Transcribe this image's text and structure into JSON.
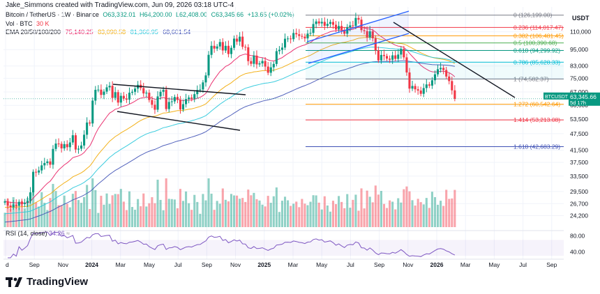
{
  "header": {
    "caption": "Jake_Simmons created with TradingView.com, Jun 09, 2026 03:18 UTC-4",
    "symbol": "Bitcoin / TetherUS · 1W · Binance",
    "open": "O63,332.01",
    "high": "H64,200.00",
    "low": "L62,408.00",
    "close": "C63,345.66",
    "change": "+13.65 (+0.02%)",
    "volume_label": "Vol · BTC",
    "volume_value": "30 K",
    "ema_label": "EMA 20/50/100/200",
    "ema_values": [
      "75,140.25",
      "83,090.58",
      "81,366.95",
      "68,601.54"
    ]
  },
  "colors": {
    "up": "#089981",
    "down": "#f23645",
    "ema20": "#e91e63",
    "ema50": "#f2a900",
    "ema100": "#26c6da",
    "ema200": "#3f51b5",
    "rsi": "#7e57c2"
  },
  "currency": "USDT",
  "price_tag": {
    "symbol": "BTCUSDT",
    "price": "63,345.66",
    "countdown": "5d 17h"
  },
  "rsi": {
    "label": "RSI (14, close)",
    "value": "34.26",
    "extra": "≈"
  },
  "branding": {
    "logo_text": "TradingView",
    "logo_icon": "tradingview-logo-icon"
  },
  "chart_data": {
    "type": "candlestick",
    "title": "Bitcoin / TetherUS · 1W · Binance",
    "ylabel": "USDT",
    "y_scale": "log",
    "ylim": [
      21500,
      135000
    ],
    "y_ticks": [
      110000,
      95000,
      83000,
      75000,
      67000,
      60000,
      53500,
      47500,
      41500,
      37500,
      33500,
      29500,
      26700,
      24200
    ],
    "y_tick_labels": [
      "110,000",
      "95,000",
      "83,000",
      "75,000",
      "67,000",
      "60,000",
      "53,500",
      "47,500",
      "41,500",
      "37,500",
      "33,500",
      "29,500",
      "26,700",
      "24,200"
    ],
    "x_tick_labels": [
      "d",
      "Sep",
      "Nov",
      "2024",
      "Mar",
      "May",
      "Jul",
      "Sep",
      "Nov",
      "2025",
      "Mar",
      "May",
      "Jul",
      "Sep",
      "Nov",
      "2026",
      "Mar",
      "May",
      "Jul",
      "Sep"
    ],
    "weekly_close": [
      27200,
      26300,
      25900,
      26500,
      26200,
      27100,
      26600,
      26900,
      27300,
      29300,
      34700,
      34500,
      35100,
      36600,
      37300,
      37800,
      36800,
      41900,
      43800,
      43700,
      42100,
      43600,
      42500,
      44200,
      46900,
      41700,
      42000,
      43100,
      47100,
      52100,
      51700,
      62400,
      68200,
      68300,
      65400,
      67200,
      69600,
      70500,
      63800,
      66900,
      61400,
      64900,
      63500,
      62900,
      66600,
      67100,
      68900,
      71100,
      69200,
      66200,
      66600,
      62700,
      60300,
      57900,
      64600,
      67100,
      68200,
      58200,
      61700,
      62000,
      64300,
      62800,
      58000,
      60600,
      63200,
      64000,
      63300,
      65800,
      68100,
      68400,
      72500,
      76800,
      91000,
      98000,
      95800,
      97500,
      101100,
      94300,
      98000,
      91600,
      96400,
      104000,
      101500,
      105700,
      97200,
      96800,
      86400,
      84500,
      90400,
      84100,
      84800,
      86500,
      82600,
      78500,
      82100,
      84400,
      93800,
      94800,
      96600,
      103900,
      104100,
      103500,
      108900,
      107800,
      106300,
      105700,
      104200,
      108400,
      109000,
      117300,
      119800,
      117900,
      119400,
      115600,
      117400,
      119300,
      116600,
      112100,
      115400,
      111800,
      108300,
      114300,
      116000,
      115500,
      123300,
      121600,
      111500,
      110700,
      105000,
      110500,
      104300,
      94400,
      86900,
      90900,
      90100,
      88200,
      87400,
      90600,
      88000,
      91200,
      95500,
      89100,
      78700,
      68900,
      70400,
      68500,
      67800,
      66000,
      69200,
      71300,
      70600,
      73800,
      77500,
      80800,
      81700,
      80300,
      76100,
      73300,
      67900,
      63346
    ],
    "ema": [
      {
        "period": 20,
        "last": 75140.25
      },
      {
        "period": 50,
        "last": 83090.58
      },
      {
        "period": 100,
        "last": 81366.95
      },
      {
        "period": 200,
        "last": 68601.54
      }
    ],
    "fibonacci": [
      {
        "level": "0",
        "price": 126199.0,
        "label": "0 (126,199.00)",
        "color": "#787b86"
      },
      {
        "level": "0.236",
        "price": 114017.47,
        "label": "0.236 (114,017.47)",
        "color": "#f23645"
      },
      {
        "level": "0.382",
        "price": 106481.45,
        "label": "0.382 (106,481.45)",
        "color": "#ff9800"
      },
      {
        "level": "0.5",
        "price": 100390.68,
        "label": "0.5 (100,390.68)",
        "color": "#4caf50"
      },
      {
        "level": "0.618",
        "price": 94299.92,
        "label": "0.618 (94,299.92)",
        "color": "#089981"
      },
      {
        "level": "0.786",
        "price": 85628.33,
        "label": "0.786 (85,628.33)",
        "color": "#00bcd4"
      },
      {
        "level": "1",
        "price": 74582.37,
        "label": "1 (74,582.37)",
        "color": "#787b86"
      },
      {
        "level": "1.272",
        "price": 60542.64,
        "label": "1.272 (60,542.64)",
        "color": "#ff9800"
      },
      {
        "level": "1.414",
        "price": 53213.08,
        "label": "1.414 (53,213.08)",
        "color": "#f23645"
      },
      {
        "level": "1.618",
        "price": 42683.29,
        "label": "1.618 (42,683.29)",
        "color": "#3f51b5"
      }
    ],
    "rsi_ticks": [
      80,
      40
    ],
    "rsi_tick_labels": [
      "80.00",
      "40.00"
    ]
  }
}
